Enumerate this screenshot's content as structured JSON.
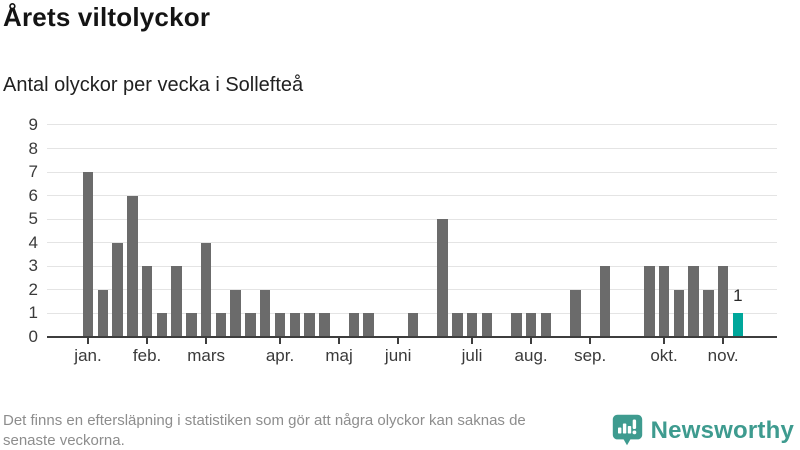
{
  "header": {
    "title": "Årets viltolyckor",
    "subtitle": "Antal olyckor per vecka i Sollefteå"
  },
  "chart_data": {
    "type": "bar",
    "title": "Årets viltolyckor",
    "subtitle": "Antal olyckor per vecka i Sollefteå",
    "x_unit": "vecka",
    "ylim": [
      0,
      9
    ],
    "yticks": [
      0,
      1,
      2,
      3,
      4,
      5,
      6,
      7,
      8,
      9
    ],
    "grid": true,
    "legend": "none",
    "months": [
      {
        "label": "jan.",
        "weekly_values": [
          7,
          2,
          4,
          6
        ]
      },
      {
        "label": "feb.",
        "weekly_values": [
          3,
          1,
          3,
          1
        ]
      },
      {
        "label": "mars",
        "weekly_values": [
          4,
          1,
          2,
          1,
          2
        ]
      },
      {
        "label": "apr.",
        "weekly_values": [
          1,
          1,
          1,
          1
        ]
      },
      {
        "label": "maj",
        "weekly_values": [
          0,
          1,
          1,
          0
        ]
      },
      {
        "label": "juni",
        "weekly_values": [
          0,
          1,
          0,
          5,
          1
        ]
      },
      {
        "label": "juli",
        "weekly_values": [
          1,
          1,
          0,
          1
        ]
      },
      {
        "label": "aug.",
        "weekly_values": [
          1,
          1,
          0,
          2
        ]
      },
      {
        "label": "sep.",
        "weekly_values": [
          0,
          3,
          0,
          0,
          3
        ]
      },
      {
        "label": "okt.",
        "weekly_values": [
          3,
          2,
          3,
          2
        ]
      },
      {
        "label": "nov.",
        "weekly_values": [
          3,
          1
        ]
      }
    ],
    "last_point": {
      "value": 1,
      "label": "1",
      "highlighted": true
    },
    "colors": {
      "bar": "#6b6b6b",
      "highlight": "#00a79b",
      "grid": "#e4e4e4",
      "axis": "#3d3d3d",
      "axis_text": "#3a3a3a",
      "value_label_text": "#2a2a2a"
    }
  },
  "footer": {
    "note_line1": "Det finns en eftersläpning i statistiken som gör att några olyckor kan saknas de",
    "note_line2": "senaste veckorna.",
    "logo_text": "Newsworthy",
    "logo_icon": "speech-bubble-bar-chart",
    "logo_color": "#3e9b8f"
  }
}
